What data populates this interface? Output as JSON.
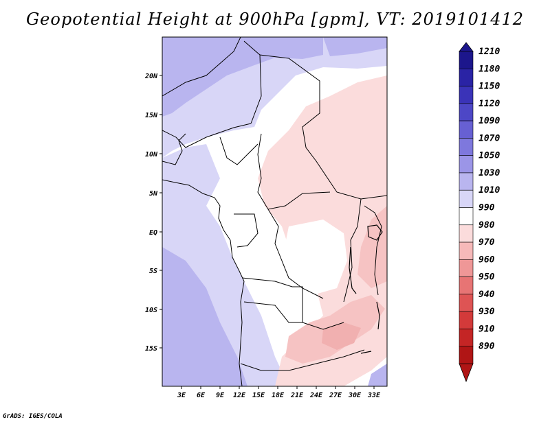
{
  "title": "Geopotential Height at 900hPa [gpm], VT: 2019101412",
  "footer": "GrADS: IGES/COLA",
  "map": {
    "lon_ticks": [
      "3E",
      "6E",
      "9E",
      "12E",
      "15E",
      "18E",
      "21E",
      "24E",
      "27E",
      "30E",
      "33E"
    ],
    "lat_ticks": [
      "20N",
      "15N",
      "10N",
      "5N",
      "EQ",
      "5S",
      "10S",
      "15S"
    ]
  },
  "colorbar": {
    "levels": [
      "1210",
      "1180",
      "1150",
      "1120",
      "1090",
      "1070",
      "1050",
      "1030",
      "1010",
      "990",
      "980",
      "970",
      "960",
      "950",
      "940",
      "930",
      "910",
      "890"
    ],
    "colors": [
      "#1c168c",
      "#2a23a5",
      "#3a33b8",
      "#4d47c6",
      "#6760d3",
      "#7e78dd",
      "#9b95e7",
      "#b9b5ef",
      "#d8d6f7",
      "#ffffff",
      "#fbdcdc",
      "#f6b9b9",
      "#ef9797",
      "#e77474",
      "#de5454",
      "#d33a3a",
      "#c42525",
      "#b01515"
    ]
  },
  "colors": {
    "land_low_blue": "#c9c7f5",
    "ocean_blue": "#d6d4f7",
    "north_blue": "#b8b4ef",
    "pink": "#fbdcdc",
    "pink_mid": "#f6c3c3",
    "pink_dark": "#f1a9a9"
  }
}
